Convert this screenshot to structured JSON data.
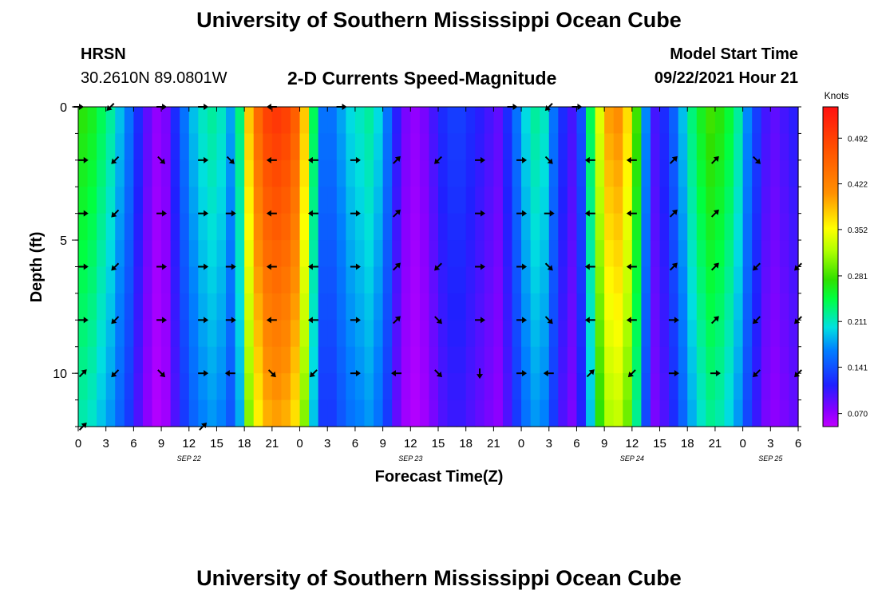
{
  "header": {
    "title": "University of Southern Mississippi Ocean Cube",
    "station": "HRSN",
    "coords": "30.2610N  89.0801W",
    "plot_title": "2-D Currents Speed-Magnitude",
    "model_label": "Model Start Time",
    "model_time": "09/22/2021 Hour 21"
  },
  "footer": {
    "title": "University of Southern Mississippi Ocean Cube"
  },
  "chart_data": {
    "type": "heatmap",
    "title": "2-D Currents Speed-Magnitude",
    "xlabel": "Forecast Time(Z)",
    "ylabel": "Depth (ft)",
    "x_tick_labels": [
      "0",
      "3",
      "6",
      "9",
      "12",
      "15",
      "18",
      "21",
      "0",
      "3",
      "6",
      "9",
      "12",
      "15",
      "18",
      "21",
      "0",
      "3",
      "6",
      "9",
      "12",
      "15",
      "18",
      "21",
      "0",
      "3",
      "6"
    ],
    "x_date_labels": [
      {
        "label": "SEP 22",
        "hour": 12
      },
      {
        "label": "SEP 23",
        "hour": 36
      },
      {
        "label": "SEP 24",
        "hour": 60
      },
      {
        "label": "SEP 25",
        "hour": 75
      }
    ],
    "xlim": [
      0,
      78
    ],
    "y_tick_labels": [
      "0",
      "5",
      "10"
    ],
    "ylim": [
      0,
      12
    ],
    "y_ticks": [
      0,
      5,
      10
    ],
    "colorbar": {
      "unit": "Knots",
      "tick_labels": [
        "0.492",
        "0.422",
        "0.352",
        "0.281",
        "0.211",
        "0.141",
        "0.070"
      ],
      "range": [
        0.05,
        0.54
      ]
    },
    "columns_hours": [
      0,
      1,
      2,
      3,
      4,
      5,
      6,
      7,
      8,
      9,
      10,
      11,
      12,
      13,
      14,
      15,
      16,
      17,
      18,
      19,
      20,
      21,
      22,
      23,
      24,
      25,
      26,
      27,
      28,
      29,
      30,
      31,
      32,
      33,
      34,
      35,
      36,
      37,
      38,
      39,
      40,
      41,
      42,
      43,
      44,
      45,
      46,
      47,
      48,
      49,
      50,
      51,
      52,
      53,
      54,
      55,
      56,
      57,
      58,
      59,
      60,
      61,
      62,
      63,
      64,
      65,
      66,
      67,
      68,
      69,
      70,
      71,
      72,
      73,
      74,
      75,
      76,
      77
    ],
    "speed_top_knots": [
      0.27,
      0.26,
      0.24,
      0.22,
      0.19,
      0.16,
      0.12,
      0.09,
      0.07,
      0.08,
      0.12,
      0.16,
      0.19,
      0.21,
      0.22,
      0.21,
      0.18,
      0.23,
      0.38,
      0.45,
      0.49,
      0.5,
      0.49,
      0.46,
      0.38,
      0.24,
      0.16,
      0.16,
      0.18,
      0.2,
      0.21,
      0.22,
      0.2,
      0.16,
      0.11,
      0.08,
      0.07,
      0.08,
      0.1,
      0.12,
      0.13,
      0.13,
      0.12,
      0.11,
      0.1,
      0.09,
      0.12,
      0.16,
      0.2,
      0.22,
      0.21,
      0.16,
      0.12,
      0.1,
      0.14,
      0.24,
      0.34,
      0.4,
      0.41,
      0.37,
      0.28,
      0.17,
      0.1,
      0.12,
      0.15,
      0.19,
      0.23,
      0.26,
      0.28,
      0.27,
      0.25,
      0.22,
      0.17,
      0.13,
      0.1,
      0.09,
      0.1,
      0.11
    ],
    "arrows": [
      {
        "hour": 0,
        "depth": 0,
        "dir": "E"
      },
      {
        "hour": 3.5,
        "depth": 0,
        "dir": "SW"
      },
      {
        "hour": 9,
        "depth": 0,
        "dir": "E"
      },
      {
        "hour": 13.5,
        "depth": 0,
        "dir": "E"
      },
      {
        "hour": 21,
        "depth": 0,
        "dir": "W"
      },
      {
        "hour": 28.5,
        "depth": 0,
        "dir": "E"
      },
      {
        "hour": 47,
        "depth": 0,
        "dir": "E"
      },
      {
        "hour": 51,
        "depth": 0,
        "dir": "SW"
      },
      {
        "hour": 54,
        "depth": 0,
        "dir": "E"
      },
      {
        "hour": 0.5,
        "depth": 2,
        "dir": "E"
      },
      {
        "hour": 4,
        "depth": 2,
        "dir": "SW"
      },
      {
        "hour": 9,
        "depth": 2,
        "dir": "SE"
      },
      {
        "hour": 13.5,
        "depth": 2,
        "dir": "E"
      },
      {
        "hour": 16.5,
        "depth": 2,
        "dir": "SE"
      },
      {
        "hour": 21,
        "depth": 2,
        "dir": "W"
      },
      {
        "hour": 25.5,
        "depth": 2,
        "dir": "W"
      },
      {
        "hour": 30,
        "depth": 2,
        "dir": "E"
      },
      {
        "hour": 34.5,
        "depth": 2,
        "dir": "NE"
      },
      {
        "hour": 39,
        "depth": 2,
        "dir": "SW"
      },
      {
        "hour": 43.5,
        "depth": 2,
        "dir": "E"
      },
      {
        "hour": 48,
        "depth": 2,
        "dir": "E"
      },
      {
        "hour": 51,
        "depth": 2,
        "dir": "SE"
      },
      {
        "hour": 55.5,
        "depth": 2,
        "dir": "W"
      },
      {
        "hour": 60,
        "depth": 2,
        "dir": "W"
      },
      {
        "hour": 64.5,
        "depth": 2,
        "dir": "NE"
      },
      {
        "hour": 69,
        "depth": 2,
        "dir": "NE"
      },
      {
        "hour": 73.5,
        "depth": 2,
        "dir": "SE"
      },
      {
        "hour": 0.5,
        "depth": 4,
        "dir": "E"
      },
      {
        "hour": 4,
        "depth": 4,
        "dir": "SW"
      },
      {
        "hour": 9,
        "depth": 4,
        "dir": "E"
      },
      {
        "hour": 13.5,
        "depth": 4,
        "dir": "E"
      },
      {
        "hour": 16.5,
        "depth": 4,
        "dir": "E"
      },
      {
        "hour": 21,
        "depth": 4,
        "dir": "W"
      },
      {
        "hour": 25.5,
        "depth": 4,
        "dir": "W"
      },
      {
        "hour": 30,
        "depth": 4,
        "dir": "E"
      },
      {
        "hour": 34.5,
        "depth": 4,
        "dir": "NE"
      },
      {
        "hour": 43.5,
        "depth": 4,
        "dir": "E"
      },
      {
        "hour": 48,
        "depth": 4,
        "dir": "E"
      },
      {
        "hour": 51,
        "depth": 4,
        "dir": "E"
      },
      {
        "hour": 55.5,
        "depth": 4,
        "dir": "W"
      },
      {
        "hour": 60,
        "depth": 4,
        "dir": "W"
      },
      {
        "hour": 64.5,
        "depth": 4,
        "dir": "NE"
      },
      {
        "hour": 69,
        "depth": 4,
        "dir": "NE"
      },
      {
        "hour": 0.5,
        "depth": 6,
        "dir": "E"
      },
      {
        "hour": 4,
        "depth": 6,
        "dir": "SW"
      },
      {
        "hour": 9,
        "depth": 6,
        "dir": "E"
      },
      {
        "hour": 13.5,
        "depth": 6,
        "dir": "E"
      },
      {
        "hour": 16.5,
        "depth": 6,
        "dir": "E"
      },
      {
        "hour": 21,
        "depth": 6,
        "dir": "W"
      },
      {
        "hour": 25.5,
        "depth": 6,
        "dir": "W"
      },
      {
        "hour": 30,
        "depth": 6,
        "dir": "E"
      },
      {
        "hour": 34.5,
        "depth": 6,
        "dir": "NE"
      },
      {
        "hour": 39,
        "depth": 6,
        "dir": "SW"
      },
      {
        "hour": 43.5,
        "depth": 6,
        "dir": "E"
      },
      {
        "hour": 48,
        "depth": 6,
        "dir": "E"
      },
      {
        "hour": 51,
        "depth": 6,
        "dir": "SE"
      },
      {
        "hour": 55.5,
        "depth": 6,
        "dir": "W"
      },
      {
        "hour": 60,
        "depth": 6,
        "dir": "W"
      },
      {
        "hour": 64.5,
        "depth": 6,
        "dir": "NE"
      },
      {
        "hour": 69,
        "depth": 6,
        "dir": "NE"
      },
      {
        "hour": 73.5,
        "depth": 6,
        "dir": "SW"
      },
      {
        "hour": 78,
        "depth": 6,
        "dir": "SW"
      },
      {
        "hour": 0.5,
        "depth": 8,
        "dir": "E"
      },
      {
        "hour": 4,
        "depth": 8,
        "dir": "SW"
      },
      {
        "hour": 9,
        "depth": 8,
        "dir": "E"
      },
      {
        "hour": 13.5,
        "depth": 8,
        "dir": "E"
      },
      {
        "hour": 16.5,
        "depth": 8,
        "dir": "E"
      },
      {
        "hour": 21,
        "depth": 8,
        "dir": "W"
      },
      {
        "hour": 25.5,
        "depth": 8,
        "dir": "W"
      },
      {
        "hour": 30,
        "depth": 8,
        "dir": "E"
      },
      {
        "hour": 34.5,
        "depth": 8,
        "dir": "NE"
      },
      {
        "hour": 39,
        "depth": 8,
        "dir": "SE"
      },
      {
        "hour": 43.5,
        "depth": 8,
        "dir": "E"
      },
      {
        "hour": 48,
        "depth": 8,
        "dir": "E"
      },
      {
        "hour": 51,
        "depth": 8,
        "dir": "SE"
      },
      {
        "hour": 55.5,
        "depth": 8,
        "dir": "W"
      },
      {
        "hour": 60,
        "depth": 8,
        "dir": "W"
      },
      {
        "hour": 64.5,
        "depth": 8,
        "dir": "E"
      },
      {
        "hour": 69,
        "depth": 8,
        "dir": "NE"
      },
      {
        "hour": 73.5,
        "depth": 8,
        "dir": "SW"
      },
      {
        "hour": 78,
        "depth": 8,
        "dir": "SW"
      },
      {
        "hour": 0.5,
        "depth": 10,
        "dir": "NE"
      },
      {
        "hour": 4,
        "depth": 10,
        "dir": "SW"
      },
      {
        "hour": 9,
        "depth": 10,
        "dir": "SE"
      },
      {
        "hour": 13.5,
        "depth": 10,
        "dir": "E"
      },
      {
        "hour": 16.5,
        "depth": 10,
        "dir": "W"
      },
      {
        "hour": 21,
        "depth": 10,
        "dir": "SE"
      },
      {
        "hour": 25.5,
        "depth": 10,
        "dir": "SW"
      },
      {
        "hour": 30,
        "depth": 10,
        "dir": "E"
      },
      {
        "hour": 34.5,
        "depth": 10,
        "dir": "W"
      },
      {
        "hour": 39,
        "depth": 10,
        "dir": "SE"
      },
      {
        "hour": 43.5,
        "depth": 10,
        "dir": "S"
      },
      {
        "hour": 48,
        "depth": 10,
        "dir": "E"
      },
      {
        "hour": 51,
        "depth": 10,
        "dir": "W"
      },
      {
        "hour": 55.5,
        "depth": 10,
        "dir": "NE"
      },
      {
        "hour": 60,
        "depth": 10,
        "dir": "SW"
      },
      {
        "hour": 64.5,
        "depth": 10,
        "dir": "E"
      },
      {
        "hour": 69,
        "depth": 10,
        "dir": "E"
      },
      {
        "hour": 73.5,
        "depth": 10,
        "dir": "SW"
      },
      {
        "hour": 78,
        "depth": 10,
        "dir": "SW"
      },
      {
        "hour": 0.5,
        "depth": 12,
        "dir": "NE"
      },
      {
        "hour": 13.5,
        "depth": 12,
        "dir": "NE"
      }
    ]
  }
}
